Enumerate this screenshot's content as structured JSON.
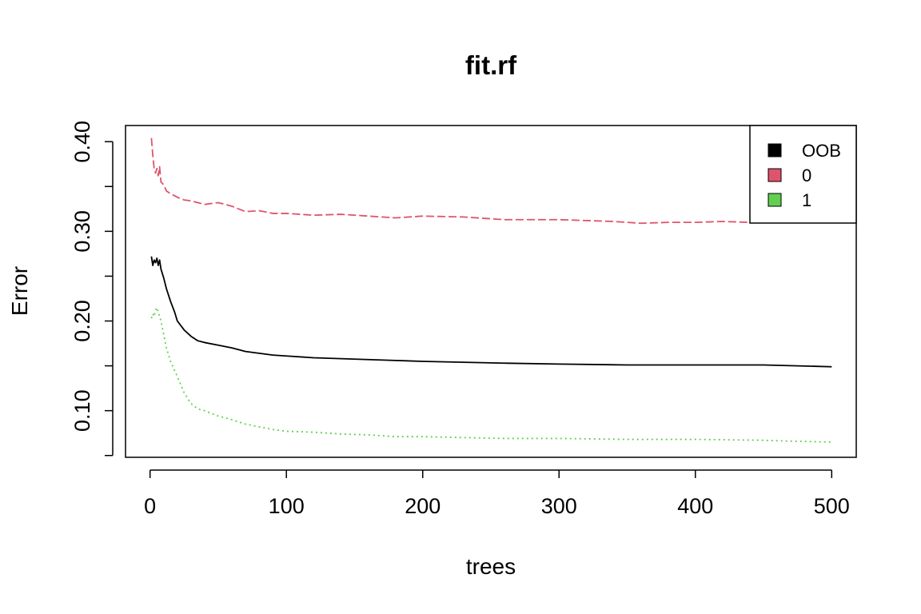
{
  "chart_data": {
    "type": "line",
    "title": "fit.rf",
    "xlabel": "trees",
    "ylabel": "Error",
    "xlim": [
      -18,
      518
    ],
    "ylim": [
      0.048,
      0.418
    ],
    "xticks": [
      0,
      100,
      200,
      300,
      400,
      500
    ],
    "xtick_labels": [
      "0",
      "100",
      "200",
      "300",
      "400",
      "500"
    ],
    "yticks": [
      0.05,
      0.1,
      0.15,
      0.2,
      0.25,
      0.3,
      0.35,
      0.4
    ],
    "ytick_labels": [
      "",
      "0.10",
      "",
      "0.20",
      "",
      "0.30",
      "",
      "0.40"
    ],
    "grid": false,
    "legend_position": "top-right",
    "series": [
      {
        "name": "OOB",
        "color": "#000000",
        "dash": "solid",
        "x": [
          1,
          2,
          3,
          4,
          5,
          6,
          7,
          8,
          10,
          12,
          15,
          18,
          20,
          25,
          30,
          35,
          40,
          50,
          60,
          70,
          80,
          90,
          100,
          120,
          140,
          160,
          180,
          200,
          230,
          260,
          300,
          350,
          400,
          450,
          500
        ],
        "y": [
          0.272,
          0.262,
          0.268,
          0.265,
          0.27,
          0.262,
          0.268,
          0.258,
          0.248,
          0.236,
          0.222,
          0.21,
          0.2,
          0.19,
          0.183,
          0.178,
          0.176,
          0.173,
          0.17,
          0.166,
          0.164,
          0.162,
          0.161,
          0.159,
          0.158,
          0.157,
          0.156,
          0.155,
          0.154,
          0.153,
          0.152,
          0.151,
          0.151,
          0.151,
          0.149
        ]
      },
      {
        "name": "0",
        "color": "#DF536B",
        "dash": "dashed",
        "x": [
          1,
          2,
          3,
          4,
          5,
          6,
          7,
          8,
          10,
          12,
          15,
          20,
          25,
          30,
          40,
          50,
          60,
          70,
          80,
          90,
          100,
          120,
          140,
          160,
          180,
          200,
          230,
          260,
          300,
          340,
          360,
          380,
          400,
          420,
          440,
          450
        ],
        "y": [
          0.404,
          0.385,
          0.37,
          0.365,
          0.37,
          0.362,
          0.372,
          0.355,
          0.352,
          0.345,
          0.342,
          0.338,
          0.335,
          0.334,
          0.33,
          0.332,
          0.328,
          0.322,
          0.323,
          0.32,
          0.32,
          0.318,
          0.319,
          0.317,
          0.315,
          0.317,
          0.316,
          0.313,
          0.313,
          0.311,
          0.309,
          0.31,
          0.31,
          0.311,
          0.31,
          0.312
        ]
      },
      {
        "name": "1",
        "color": "#61D04F",
        "dash": "dotted",
        "x": [
          1,
          2,
          3,
          4,
          5,
          6,
          8,
          10,
          12,
          15,
          20,
          25,
          30,
          35,
          40,
          50,
          60,
          70,
          80,
          90,
          100,
          120,
          140,
          160,
          180,
          200,
          230,
          260,
          300,
          350,
          400,
          450,
          470,
          500
        ],
        "y": [
          0.203,
          0.208,
          0.205,
          0.212,
          0.215,
          0.21,
          0.2,
          0.185,
          0.17,
          0.155,
          0.138,
          0.12,
          0.108,
          0.102,
          0.1,
          0.094,
          0.09,
          0.085,
          0.082,
          0.079,
          0.077,
          0.076,
          0.074,
          0.073,
          0.071,
          0.071,
          0.07,
          0.069,
          0.069,
          0.068,
          0.068,
          0.067,
          0.066,
          0.065
        ]
      }
    ]
  }
}
